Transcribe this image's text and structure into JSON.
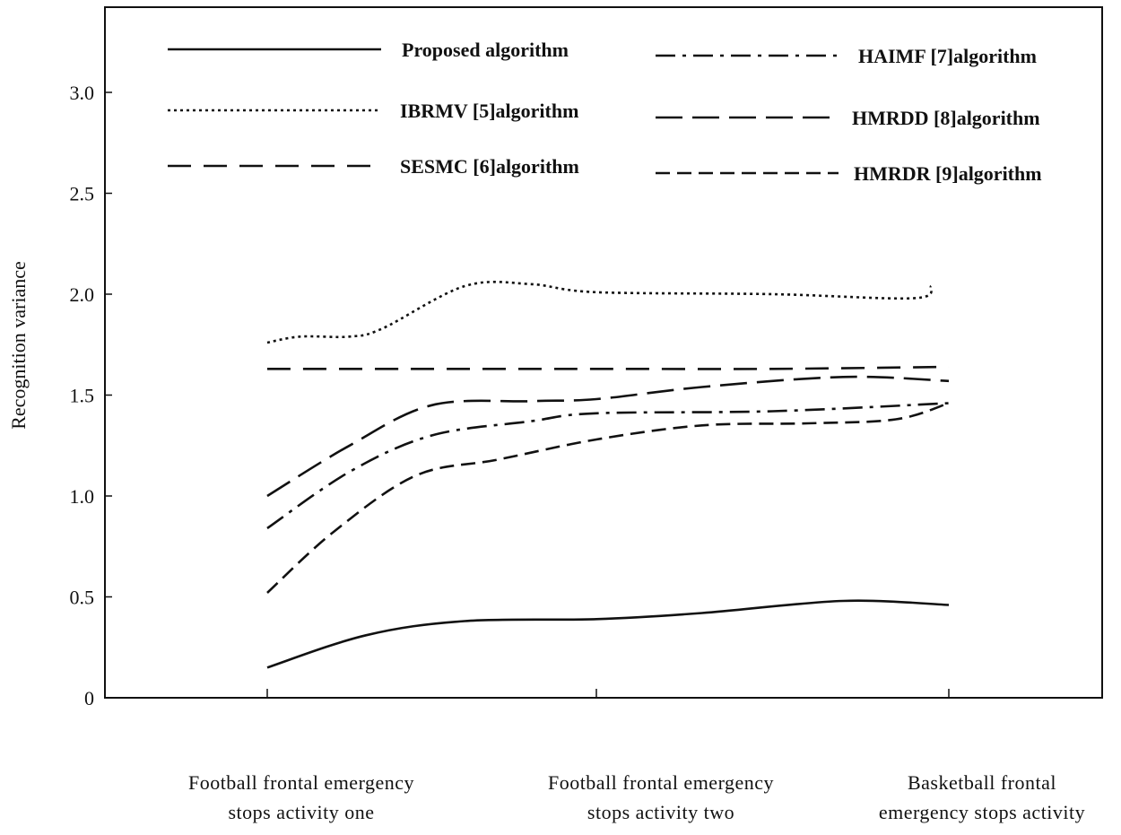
{
  "chart_data": {
    "type": "line",
    "title": "",
    "xlabel": "",
    "ylabel": "Recognition variance",
    "ylim": [
      0,
      3.0
    ],
    "yticks": [
      {
        "value": 0,
        "label": "0"
      },
      {
        "value": 0.5,
        "label": "0.5"
      },
      {
        "value": 1.0,
        "label": "1.0"
      },
      {
        "value": 1.5,
        "label": "1.5"
      },
      {
        "value": 2.0,
        "label": "2.0"
      },
      {
        "value": 2.5,
        "label": "2.5"
      },
      {
        "value": 3.0,
        "label": "3.0"
      }
    ],
    "categories": [
      "Football frontal emergency stops activity one",
      "Football frontal emergency stops activity two",
      "Basketball frontal emergency stops activity"
    ],
    "category_label_lines": [
      [
        "Football frontal emergency",
        "stops activity one"
      ],
      [
        "Football frontal emergency",
        "stops activity two"
      ],
      [
        "Basketball frontal",
        "emergency stops activity"
      ]
    ],
    "grid": false,
    "legend_position": "top",
    "series": [
      {
        "name": "Proposed algorithm",
        "style": "solid",
        "points": [
          [
            0,
            0.15
          ],
          [
            0.3,
            0.31
          ],
          [
            0.6,
            0.38
          ],
          [
            1.0,
            0.39
          ],
          [
            1.3,
            0.42
          ],
          [
            1.7,
            0.48
          ],
          [
            2.0,
            0.46
          ]
        ]
      },
      {
        "name": "IBRMV [5]algorithm",
        "style": "dotted",
        "points": [
          [
            0,
            1.76
          ],
          [
            0.1,
            1.79
          ],
          [
            0.25,
            1.79
          ],
          [
            0.35,
            1.83
          ],
          [
            0.6,
            2.04
          ],
          [
            0.8,
            2.05
          ],
          [
            1.0,
            2.01
          ],
          [
            1.5,
            2.0
          ],
          [
            1.9,
            1.98
          ],
          [
            1.95,
            2.04
          ]
        ]
      },
      {
        "name": "SESMC [6]algorithm",
        "style": "long-dash",
        "points": [
          [
            0,
            1.63
          ],
          [
            0.5,
            1.63
          ],
          [
            1.0,
            1.63
          ],
          [
            1.5,
            1.63
          ],
          [
            2.0,
            1.64
          ]
        ]
      },
      {
        "name": "HAIMF [7]algorithm",
        "style": "dash-dot",
        "points": [
          [
            0,
            0.84
          ],
          [
            0.25,
            1.12
          ],
          [
            0.5,
            1.3
          ],
          [
            0.8,
            1.37
          ],
          [
            1.0,
            1.41
          ],
          [
            1.5,
            1.42
          ],
          [
            2.0,
            1.46
          ]
        ]
      },
      {
        "name": "HMRDD [8]algorithm",
        "style": "dash",
        "points": [
          [
            0,
            1.0
          ],
          [
            0.25,
            1.25
          ],
          [
            0.5,
            1.45
          ],
          [
            0.8,
            1.47
          ],
          [
            1.0,
            1.48
          ],
          [
            1.3,
            1.54
          ],
          [
            1.7,
            1.59
          ],
          [
            2.0,
            1.57
          ]
        ]
      },
      {
        "name": "HMRDR [9]algorithm",
        "style": "short-dash",
        "points": [
          [
            0,
            0.52
          ],
          [
            0.2,
            0.82
          ],
          [
            0.45,
            1.1
          ],
          [
            0.7,
            1.18
          ],
          [
            1.0,
            1.28
          ],
          [
            1.3,
            1.35
          ],
          [
            1.6,
            1.36
          ],
          [
            1.85,
            1.38
          ],
          [
            2.0,
            1.46
          ]
        ]
      }
    ]
  },
  "colors": {
    "line": "#111111",
    "background": "#ffffff"
  }
}
